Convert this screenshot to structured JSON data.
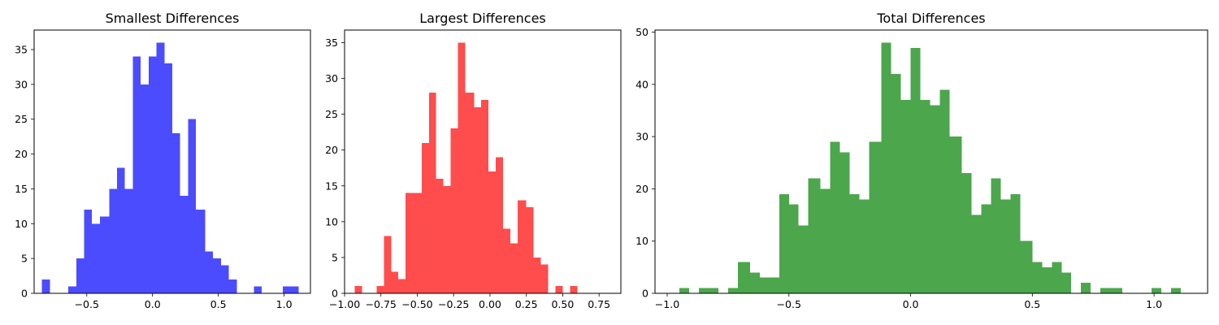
{
  "chart_data": [
    {
      "type": "bar",
      "title": "Smallest Differences",
      "color": "#0000ff",
      "opacity": 0.7,
      "xlim": [
        -0.9,
        1.2
      ],
      "ylim": [
        0,
        37.8
      ],
      "xticks": [
        -0.5,
        0.0,
        0.5,
        1.0
      ],
      "xtick_labels": [
        "−0.5",
        "0.0",
        "0.5",
        "1.0"
      ],
      "yticks": [
        0,
        5,
        10,
        15,
        20,
        25,
        30,
        35
      ],
      "ytick_labels": [
        "0",
        "5",
        "10",
        "15",
        "20",
        "25",
        "30",
        "35"
      ],
      "grid": false,
      "bins": [
        {
          "x0": -0.84,
          "x1": -0.78,
          "count": 2
        },
        {
          "x0": -0.64,
          "x1": -0.58,
          "count": 1
        },
        {
          "x0": -0.58,
          "x1": -0.52,
          "count": 5
        },
        {
          "x0": -0.52,
          "x1": -0.46,
          "count": 12
        },
        {
          "x0": -0.46,
          "x1": -0.4,
          "count": 10
        },
        {
          "x0": -0.4,
          "x1": -0.33,
          "count": 11
        },
        {
          "x0": -0.33,
          "x1": -0.27,
          "count": 15
        },
        {
          "x0": -0.27,
          "x1": -0.21,
          "count": 18
        },
        {
          "x0": -0.21,
          "x1": -0.15,
          "count": 15
        },
        {
          "x0": -0.15,
          "x1": -0.09,
          "count": 34
        },
        {
          "x0": -0.09,
          "x1": -0.03,
          "count": 30
        },
        {
          "x0": -0.03,
          "x1": 0.03,
          "count": 34
        },
        {
          "x0": 0.03,
          "x1": 0.09,
          "count": 36
        },
        {
          "x0": 0.09,
          "x1": 0.15,
          "count": 33
        },
        {
          "x0": 0.15,
          "x1": 0.21,
          "count": 23
        },
        {
          "x0": 0.21,
          "x1": 0.27,
          "count": 14
        },
        {
          "x0": 0.27,
          "x1": 0.33,
          "count": 25
        },
        {
          "x0": 0.33,
          "x1": 0.4,
          "count": 12
        },
        {
          "x0": 0.4,
          "x1": 0.46,
          "count": 6
        },
        {
          "x0": 0.46,
          "x1": 0.52,
          "count": 5
        },
        {
          "x0": 0.52,
          "x1": 0.58,
          "count": 4
        },
        {
          "x0": 0.58,
          "x1": 0.64,
          "count": 2
        },
        {
          "x0": 0.77,
          "x1": 0.83,
          "count": 1
        },
        {
          "x0": 0.99,
          "x1": 1.05,
          "count": 1
        },
        {
          "x0": 1.05,
          "x1": 1.11,
          "count": 1
        }
      ]
    },
    {
      "type": "bar",
      "title": "Largest Differences",
      "color": "#ff0000",
      "opacity": 0.7,
      "xlim": [
        -1.0,
        0.9
      ],
      "ylim": [
        0,
        36.75
      ],
      "xticks": [
        -1.0,
        -0.75,
        -0.5,
        -0.25,
        0.0,
        0.25,
        0.5,
        0.75
      ],
      "xtick_labels": [
        "−1.00",
        "−0.75",
        "−0.50",
        "−0.25",
        "0.00",
        "0.25",
        "0.50",
        "0.75"
      ],
      "yticks": [
        0,
        5,
        10,
        15,
        20,
        25,
        30,
        35
      ],
      "ytick_labels": [
        "0",
        "5",
        "10",
        "15",
        "20",
        "25",
        "30",
        "35"
      ],
      "grid": false,
      "bins": [
        {
          "x0": -0.93,
          "x1": -0.88,
          "count": 1
        },
        {
          "x0": -0.78,
          "x1": -0.73,
          "count": 1
        },
        {
          "x0": -0.73,
          "x1": -0.68,
          "count": 8
        },
        {
          "x0": -0.68,
          "x1": -0.63,
          "count": 3
        },
        {
          "x0": -0.63,
          "x1": -0.58,
          "count": 2
        },
        {
          "x0": -0.58,
          "x1": -0.52,
          "count": 14
        },
        {
          "x0": -0.52,
          "x1": -0.47,
          "count": 14
        },
        {
          "x0": -0.47,
          "x1": -0.42,
          "count": 21
        },
        {
          "x0": -0.42,
          "x1": -0.37,
          "count": 28
        },
        {
          "x0": -0.37,
          "x1": -0.32,
          "count": 16
        },
        {
          "x0": -0.32,
          "x1": -0.27,
          "count": 15
        },
        {
          "x0": -0.27,
          "x1": -0.22,
          "count": 23
        },
        {
          "x0": -0.22,
          "x1": -0.17,
          "count": 35
        },
        {
          "x0": -0.17,
          "x1": -0.11,
          "count": 28
        },
        {
          "x0": -0.11,
          "x1": -0.06,
          "count": 26
        },
        {
          "x0": -0.06,
          "x1": -0.01,
          "count": 27
        },
        {
          "x0": -0.01,
          "x1": 0.04,
          "count": 17
        },
        {
          "x0": 0.04,
          "x1": 0.09,
          "count": 19
        },
        {
          "x0": 0.09,
          "x1": 0.14,
          "count": 9
        },
        {
          "x0": 0.14,
          "x1": 0.19,
          "count": 7
        },
        {
          "x0": 0.19,
          "x1": 0.25,
          "count": 13
        },
        {
          "x0": 0.25,
          "x1": 0.3,
          "count": 12
        },
        {
          "x0": 0.3,
          "x1": 0.35,
          "count": 5
        },
        {
          "x0": 0.35,
          "x1": 0.4,
          "count": 4
        },
        {
          "x0": 0.45,
          "x1": 0.5,
          "count": 1
        },
        {
          "x0": 0.55,
          "x1": 0.6,
          "count": 1
        }
      ]
    },
    {
      "type": "bar",
      "title": "Total Differences",
      "color": "#008000",
      "opacity": 0.7,
      "xlim": [
        -1.05,
        1.22
      ],
      "ylim": [
        0,
        50.4
      ],
      "xticks": [
        -1.0,
        -0.5,
        0.0,
        0.5,
        1.0
      ],
      "xtick_labels": [
        "−1.0",
        "−0.5",
        "0.0",
        "0.5",
        "1.0"
      ],
      "yticks": [
        0,
        10,
        20,
        30,
        40,
        50
      ],
      "ytick_labels": [
        "0",
        "10",
        "20",
        "30",
        "40",
        "50"
      ],
      "grid": false,
      "bins": [
        {
          "x0": -0.95,
          "x1": -0.91,
          "count": 1
        },
        {
          "x0": -0.87,
          "x1": -0.83,
          "count": 1
        },
        {
          "x0": -0.83,
          "x1": -0.79,
          "count": 1
        },
        {
          "x0": -0.75,
          "x1": -0.71,
          "count": 1
        },
        {
          "x0": -0.71,
          "x1": -0.66,
          "count": 6
        },
        {
          "x0": -0.66,
          "x1": -0.62,
          "count": 4
        },
        {
          "x0": -0.62,
          "x1": -0.58,
          "count": 3
        },
        {
          "x0": -0.58,
          "x1": -0.54,
          "count": 3
        },
        {
          "x0": -0.54,
          "x1": -0.5,
          "count": 19
        },
        {
          "x0": -0.5,
          "x1": -0.46,
          "count": 17
        },
        {
          "x0": -0.46,
          "x1": -0.42,
          "count": 13
        },
        {
          "x0": -0.42,
          "x1": -0.37,
          "count": 22
        },
        {
          "x0": -0.37,
          "x1": -0.33,
          "count": 20
        },
        {
          "x0": -0.33,
          "x1": -0.29,
          "count": 29
        },
        {
          "x0": -0.29,
          "x1": -0.25,
          "count": 27
        },
        {
          "x0": -0.25,
          "x1": -0.21,
          "count": 19
        },
        {
          "x0": -0.21,
          "x1": -0.17,
          "count": 18
        },
        {
          "x0": -0.17,
          "x1": -0.12,
          "count": 29
        },
        {
          "x0": -0.12,
          "x1": -0.08,
          "count": 48
        },
        {
          "x0": -0.08,
          "x1": -0.04,
          "count": 42
        },
        {
          "x0": -0.04,
          "x1": 0.0,
          "count": 37
        },
        {
          "x0": 0.0,
          "x1": 0.04,
          "count": 47
        },
        {
          "x0": 0.04,
          "x1": 0.08,
          "count": 37
        },
        {
          "x0": 0.08,
          "x1": 0.12,
          "count": 36
        },
        {
          "x0": 0.12,
          "x1": 0.16,
          "count": 39
        },
        {
          "x0": 0.16,
          "x1": 0.21,
          "count": 30
        },
        {
          "x0": 0.21,
          "x1": 0.25,
          "count": 23
        },
        {
          "x0": 0.25,
          "x1": 0.29,
          "count": 15
        },
        {
          "x0": 0.29,
          "x1": 0.33,
          "count": 17
        },
        {
          "x0": 0.33,
          "x1": 0.37,
          "count": 22
        },
        {
          "x0": 0.37,
          "x1": 0.41,
          "count": 18
        },
        {
          "x0": 0.41,
          "x1": 0.45,
          "count": 19
        },
        {
          "x0": 0.45,
          "x1": 0.5,
          "count": 10
        },
        {
          "x0": 0.5,
          "x1": 0.54,
          "count": 6
        },
        {
          "x0": 0.54,
          "x1": 0.58,
          "count": 5
        },
        {
          "x0": 0.58,
          "x1": 0.62,
          "count": 6
        },
        {
          "x0": 0.62,
          "x1": 0.66,
          "count": 4
        },
        {
          "x0": 0.7,
          "x1": 0.74,
          "count": 2
        },
        {
          "x0": 0.78,
          "x1": 0.83,
          "count": 1
        },
        {
          "x0": 0.83,
          "x1": 0.87,
          "count": 1
        },
        {
          "x0": 0.99,
          "x1": 1.03,
          "count": 1
        },
        {
          "x0": 1.07,
          "x1": 1.11,
          "count": 1
        }
      ]
    }
  ]
}
